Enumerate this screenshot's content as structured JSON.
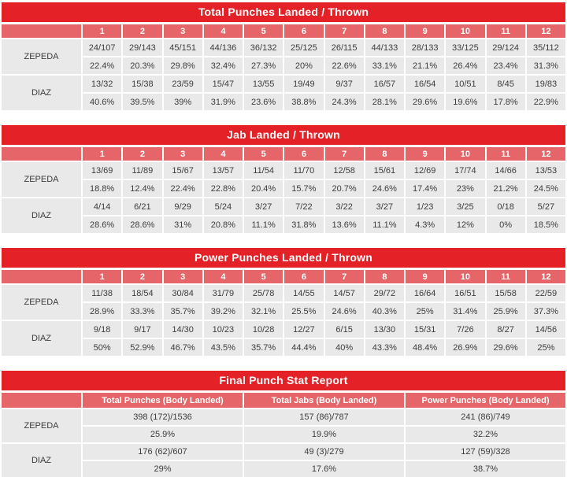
{
  "colors": {
    "title_bar_red": "#e32126",
    "column_header_red": "#e56568",
    "cell_gray": "#e9e9e9",
    "text_dark": "#3c3c3c",
    "text_white": "#ffffff"
  },
  "round_tables": [
    {
      "title": "Total Punches Landed / Thrown",
      "rounds": [
        "1",
        "2",
        "3",
        "4",
        "5",
        "6",
        "7",
        "8",
        "9",
        "10",
        "11",
        "12"
      ],
      "fighters": [
        {
          "name": "ZEPEDA",
          "values": [
            "24/107",
            "29/143",
            "45/151",
            "44/136",
            "36/132",
            "25/125",
            "26/115",
            "44/133",
            "28/133",
            "33/125",
            "29/124",
            "35/112"
          ],
          "percents": [
            "22.4%",
            "20.3%",
            "29.8%",
            "32.4%",
            "27.3%",
            "20%",
            "22.6%",
            "33.1%",
            "21.1%",
            "26.4%",
            "23.4%",
            "31.3%"
          ]
        },
        {
          "name": "DIAZ",
          "values": [
            "13/32",
            "15/38",
            "23/59",
            "15/47",
            "13/55",
            "19/49",
            "9/37",
            "16/57",
            "16/54",
            "10/51",
            "8/45",
            "19/83"
          ],
          "percents": [
            "40.6%",
            "39.5%",
            "39%",
            "31.9%",
            "23.6%",
            "38.8%",
            "24.3%",
            "28.1%",
            "29.6%",
            "19.6%",
            "17.8%",
            "22.9%"
          ]
        }
      ]
    },
    {
      "title": "Jab Landed / Thrown",
      "rounds": [
        "1",
        "2",
        "3",
        "4",
        "5",
        "6",
        "7",
        "8",
        "9",
        "10",
        "11",
        "12"
      ],
      "fighters": [
        {
          "name": "ZEPEDA",
          "values": [
            "13/69",
            "11/89",
            "15/67",
            "13/57",
            "11/54",
            "11/70",
            "12/58",
            "15/61",
            "12/69",
            "17/74",
            "14/66",
            "13/53"
          ],
          "percents": [
            "18.8%",
            "12.4%",
            "22.4%",
            "22.8%",
            "20.4%",
            "15.7%",
            "20.7%",
            "24.6%",
            "17.4%",
            "23%",
            "21.2%",
            "24.5%"
          ]
        },
        {
          "name": "DIAZ",
          "values": [
            "4/14",
            "6/21",
            "9/29",
            "5/24",
            "3/27",
            "7/22",
            "3/22",
            "3/27",
            "1/23",
            "3/25",
            "0/18",
            "5/27"
          ],
          "percents": [
            "28.6%",
            "28.6%",
            "31%",
            "20.8%",
            "11.1%",
            "31.8%",
            "13.6%",
            "11.1%",
            "4.3%",
            "12%",
            "0%",
            "18.5%"
          ]
        }
      ]
    },
    {
      "title": "Power Punches Landed / Thrown",
      "rounds": [
        "1",
        "2",
        "3",
        "4",
        "5",
        "6",
        "7",
        "8",
        "9",
        "10",
        "11",
        "12"
      ],
      "fighters": [
        {
          "name": "ZEPEDA",
          "values": [
            "11/38",
            "18/54",
            "30/84",
            "31/79",
            "25/78",
            "14/55",
            "14/57",
            "29/72",
            "16/64",
            "16/51",
            "15/58",
            "22/59"
          ],
          "percents": [
            "28.9%",
            "33.3%",
            "35.7%",
            "39.2%",
            "32.1%",
            "25.5%",
            "24.6%",
            "40.3%",
            "25%",
            "31.4%",
            "25.9%",
            "37.3%"
          ]
        },
        {
          "name": "DIAZ",
          "values": [
            "9/18",
            "9/17",
            "14/30",
            "10/23",
            "10/28",
            "12/27",
            "6/15",
            "13/30",
            "15/31",
            "7/26",
            "8/27",
            "14/56"
          ],
          "percents": [
            "50%",
            "52.9%",
            "46.7%",
            "43.5%",
            "35.7%",
            "44.4%",
            "40%",
            "43.3%",
            "48.4%",
            "26.9%",
            "29.6%",
            "25%"
          ]
        }
      ]
    }
  ],
  "final_table": {
    "title": "Final Punch Stat Report",
    "columns": [
      "Total Punches (Body Landed)",
      "Total Jabs (Body Landed)",
      "Power Punches (Body Landed)"
    ],
    "fighters": [
      {
        "name": "ZEPEDA",
        "values": [
          "398 (172)/1536",
          "157 (86)/787",
          "241 (86)/749"
        ],
        "percents": [
          "25.9%",
          "19.9%",
          "32.2%"
        ]
      },
      {
        "name": "DIAZ",
        "values": [
          "176 (62)/607",
          "49 (3)/279",
          "127 (59)/328"
        ],
        "percents": [
          "29%",
          "17.6%",
          "38.7%"
        ]
      }
    ]
  }
}
